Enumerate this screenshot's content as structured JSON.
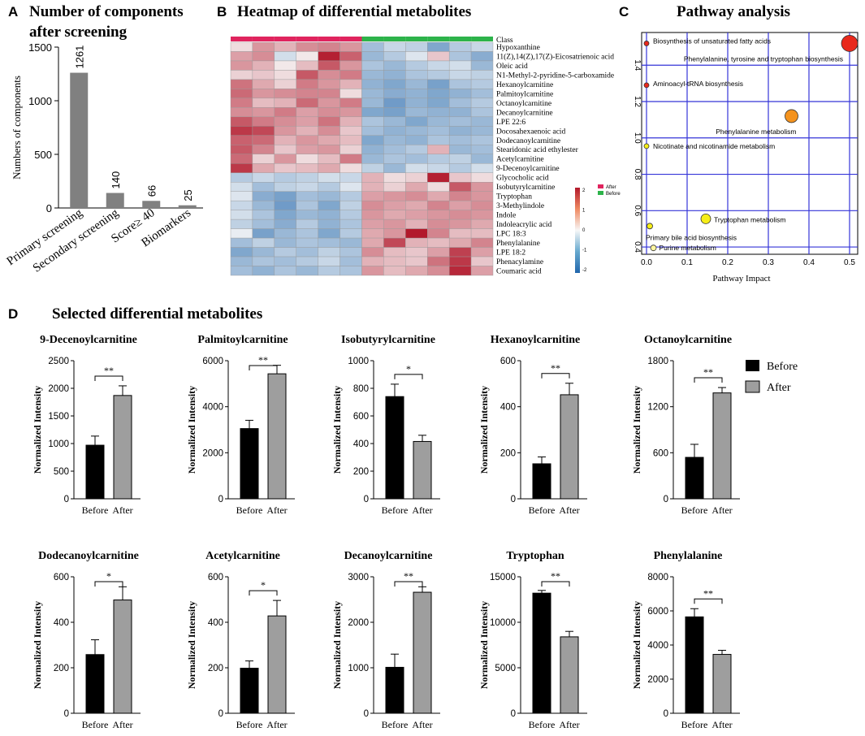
{
  "panels": {
    "a": {
      "letter": "A",
      "title_line1": "Number of components",
      "title_line2": "after screening"
    },
    "b": {
      "letter": "B",
      "title": "Heatmap of differential metabolites"
    },
    "c": {
      "letter": "C",
      "title": "Pathway analysis"
    },
    "d": {
      "letter": "D",
      "title": "Selected differential metabolites"
    }
  },
  "colors": {
    "bar_gray": "#808080",
    "before_black": "#000000",
    "after_gray": "#9e9e9e",
    "class_after": "#e0245e",
    "class_before": "#2db34a",
    "pathway_grid": "#3535d8",
    "bubble_red": "#e8291c",
    "bubble_orange": "#f4931e",
    "bubble_yellow": "#f6ee18"
  },
  "chart_data": [
    {
      "id": "screening",
      "type": "bar",
      "title": "Number of components after screening",
      "ylabel": "Numbers of components",
      "xlabel": "",
      "categories": [
        "Primary screening",
        "Secondary screening",
        "Score≥ 40",
        "Biomarkers"
      ],
      "values": [
        1261,
        140,
        66,
        25
      ],
      "value_labels": [
        "1261",
        "140",
        "66",
        "25"
      ],
      "ylim": [
        0,
        1500
      ],
      "yticks": [
        0,
        500,
        1000,
        1500
      ],
      "ytick_labels": [
        "0",
        "500",
        "1000",
        "1500"
      ]
    },
    {
      "id": "heatmap",
      "type": "heatmap",
      "title": "Heatmap of differential metabolites",
      "class_label": "Class",
      "class_groups": [
        "After",
        "After",
        "After",
        "After",
        "After",
        "After",
        "Before",
        "Before",
        "Before",
        "Before",
        "Before",
        "Before"
      ],
      "legend_groups": [
        "After",
        "Before"
      ],
      "colorbar_ticks": [
        "2",
        "1",
        "0",
        "-1",
        "-2"
      ],
      "rows": [
        "Hypoxanthine",
        "11(Z),14(Z),17(Z)-Eicosatrienoic acid",
        "Oleic acid",
        "N1-Methyl-2-pyridine-5-carboxamide",
        "Hexanoylcarnitine",
        "Palmitoylcarnitine",
        "Octanoylcarnitine",
        "Decanoylcarnitine",
        "LPE 22:6",
        "Docosahexaenoic acid",
        "Dodecanoylcarnitine",
        "Stearidonic acid ethylester",
        "Acetylcarnitine",
        "9-Decenoylcarnitine",
        "Glycocholic acid",
        "Isobutyrylcarnitine",
        "Tryptophan",
        "3-Methylindole",
        "Indole",
        "Indoleacrylic acid",
        "LPC 18:3",
        "Phenylalanine",
        "LPE 18:2",
        "Phenacylamine",
        "Coumaric acid"
      ],
      "values": [
        [
          0.2,
          0.9,
          0.6,
          1.0,
          1.1,
          0.9,
          -0.8,
          -0.4,
          -0.5,
          -1.2,
          -0.6,
          -0.4
        ],
        [
          0.8,
          1.0,
          -0.3,
          0.1,
          2.3,
          1.5,
          -0.9,
          -0.6,
          -0.2,
          0.4,
          -0.7,
          -1.1
        ],
        [
          0.9,
          0.6,
          0.1,
          0.5,
          1.6,
          0.9,
          -0.7,
          -0.9,
          -0.6,
          -0.4,
          -0.3,
          -0.9
        ],
        [
          0.3,
          0.4,
          0.2,
          1.6,
          1.0,
          1.2,
          -0.9,
          -1.0,
          -0.7,
          -0.6,
          -0.4,
          -0.5
        ],
        [
          1.3,
          0.7,
          0.3,
          1.2,
          0.9,
          0.6,
          -1.0,
          -1.2,
          -0.9,
          -1.3,
          -0.7,
          -0.6
        ],
        [
          1.4,
          0.9,
          1.0,
          1.1,
          1.1,
          0.2,
          -0.9,
          -1.1,
          -1.0,
          -1.2,
          -1.0,
          -0.8
        ],
        [
          1.2,
          0.5,
          0.6,
          1.4,
          0.9,
          1.2,
          -0.9,
          -1.4,
          -1.0,
          -1.2,
          -0.8,
          -0.6
        ],
        [
          1.0,
          0.9,
          1.2,
          0.8,
          1.0,
          0.9,
          -1.2,
          -1.3,
          -0.9,
          -1.0,
          -1.0,
          -0.7
        ],
        [
          1.6,
          1.2,
          1.0,
          0.8,
          1.3,
          0.6,
          -0.7,
          -0.9,
          -1.2,
          -0.9,
          -0.8,
          -0.9
        ],
        [
          2.0,
          1.8,
          0.9,
          0.6,
          1.0,
          0.4,
          -0.8,
          -1.0,
          -0.9,
          -0.8,
          -1.0,
          -0.9
        ],
        [
          1.5,
          1.4,
          0.6,
          0.9,
          0.7,
          0.5,
          -1.2,
          -0.9,
          -1.0,
          -0.7,
          -0.8,
          -0.7
        ],
        [
          1.6,
          1.1,
          0.4,
          0.8,
          0.9,
          0.3,
          -1.0,
          -0.8,
          -0.6,
          0.6,
          -0.9,
          -0.8
        ],
        [
          1.4,
          0.3,
          0.9,
          0.2,
          0.5,
          1.2,
          -0.9,
          -0.7,
          -0.8,
          -0.6,
          -0.5,
          -0.9
        ],
        [
          2.0,
          0.7,
          0.4,
          0.5,
          0.7,
          0.2,
          -0.5,
          -0.9,
          -0.3,
          -0.4,
          -0.6,
          -0.3
        ],
        [
          -0.6,
          -0.4,
          -0.6,
          -0.5,
          -0.3,
          -0.4,
          0.6,
          0.2,
          0.3,
          2.3,
          0.4,
          0.2
        ],
        [
          -0.3,
          -0.8,
          -0.5,
          -0.4,
          -0.6,
          -0.2,
          0.6,
          0.3,
          0.7,
          0.2,
          1.6,
          0.9
        ],
        [
          -0.2,
          -1.1,
          -1.3,
          -0.8,
          -0.9,
          -0.6,
          0.8,
          0.9,
          1.0,
          0.7,
          1.1,
          0.9
        ],
        [
          -0.4,
          -0.9,
          -1.4,
          -0.7,
          -1.2,
          -0.5,
          1.0,
          0.8,
          0.7,
          1.1,
          0.8,
          1.0
        ],
        [
          -0.3,
          -0.7,
          -1.2,
          -0.9,
          -1.0,
          -0.6,
          0.9,
          0.7,
          0.8,
          0.9,
          1.0,
          0.9
        ],
        [
          -0.5,
          -0.8,
          -1.1,
          -0.6,
          -1.0,
          -0.7,
          0.8,
          0.9,
          0.6,
          1.0,
          0.9,
          0.7
        ],
        [
          -0.1,
          -1.3,
          -0.9,
          -0.7,
          -1.2,
          -0.6,
          0.7,
          0.9,
          2.4,
          1.1,
          0.5,
          0.5
        ],
        [
          -0.8,
          -0.5,
          -0.9,
          -0.7,
          -0.8,
          -0.9,
          0.7,
          1.8,
          0.6,
          0.5,
          0.7,
          1.1
        ],
        [
          -1.2,
          -0.9,
          -0.6,
          -0.8,
          -0.5,
          -0.7,
          1.0,
          0.5,
          0.4,
          0.8,
          1.9,
          0.8
        ],
        [
          -0.9,
          -0.7,
          -0.8,
          -0.6,
          -0.4,
          -0.8,
          0.6,
          0.5,
          0.4,
          1.3,
          2.0,
          0.4
        ],
        [
          -0.8,
          -1.0,
          -0.7,
          -0.9,
          -0.6,
          -0.7,
          0.9,
          0.5,
          0.7,
          1.0,
          2.2,
          0.8
        ]
      ]
    },
    {
      "id": "pathway",
      "type": "scatter",
      "title": "Pathway analysis",
      "xlabel": "Pathway Impact",
      "ylabel": "",
      "xlim": [
        -0.012,
        0.52
      ],
      "ylim": [
        0.36,
        1.58
      ],
      "xticks": [
        0.0,
        0.1,
        0.2,
        0.3,
        0.4,
        0.5
      ],
      "xtick_labels": [
        "0.0",
        "0.1",
        "0.2",
        "0.3",
        "0.4",
        "0.5"
      ],
      "yticks": [
        0.4,
        0.6,
        0.8,
        1.0,
        1.2,
        1.4
      ],
      "ytick_labels": [
        "0.4",
        "0.6",
        "0.8",
        "1.0",
        "1.2",
        "1.4"
      ],
      "points": [
        {
          "name": "Biosynthesis of unsaturated fatty acids",
          "x": 0.0,
          "y": 1.52,
          "size": 3,
          "color": "#e8291c"
        },
        {
          "name": "Phenylalanine, tyrosine and tryptophan biosynthesis",
          "x": 0.5,
          "y": 1.52,
          "size": 10,
          "color": "#e8291c"
        },
        {
          "name": "Aminoacyl-tRNA biosynthesis",
          "x": 0.0,
          "y": 1.29,
          "size": 3,
          "color": "#e8291c"
        },
        {
          "name": "Phenylalanine metabolism",
          "x": 0.357,
          "y": 1.12,
          "size": 8,
          "color": "#f4931e"
        },
        {
          "name": "Nicotinate and nicotinamide metabolism",
          "x": 0.0,
          "y": 0.955,
          "size": 3,
          "color": "#f6ee18"
        },
        {
          "name": "Tryptophan metabolism",
          "x": 0.146,
          "y": 0.555,
          "size": 6,
          "color": "#f6ee18"
        },
        {
          "name": "Primary bile acid biosynthesis",
          "x": 0.008,
          "y": 0.515,
          "size": 3.5,
          "color": "#f6ee18"
        },
        {
          "name": "Purine metabolism",
          "x": 0.017,
          "y": 0.395,
          "size": 3.5,
          "color": "#fff6a0"
        }
      ]
    },
    {
      "id": "decenoyl",
      "type": "bar",
      "title": "9-Decenoylcarnitine",
      "ylabel": "Normalized Intensity",
      "categories": [
        "Before",
        "After"
      ],
      "values": [
        970,
        1870
      ],
      "errors": [
        165,
        175
      ],
      "ylim": [
        0,
        2500
      ],
      "yticks": [
        0,
        500,
        1000,
        1500,
        2000,
        2500
      ],
      "ytick_labels": [
        "0",
        "500",
        "1000",
        "1500",
        "2000",
        "2500"
      ],
      "significance": "**"
    },
    {
      "id": "palmitoyl",
      "type": "bar",
      "title": "Palmitoylcarnitine",
      "ylabel": "Normalized Intensity",
      "categories": [
        "Before",
        "After"
      ],
      "values": [
        3050,
        5430
      ],
      "errors": [
        360,
        370
      ],
      "ylim": [
        0,
        6000
      ],
      "yticks": [
        0,
        2000,
        4000,
        6000
      ],
      "ytick_labels": [
        "0",
        "2000",
        "4000",
        "6000"
      ],
      "significance": "**"
    },
    {
      "id": "isobutyryl",
      "type": "bar",
      "title": "Isobutyrylcarnitine",
      "ylabel": "Normalized Intensity",
      "categories": [
        "Before",
        "After"
      ],
      "values": [
        740,
        415
      ],
      "errors": [
        90,
        45
      ],
      "ylim": [
        0,
        1000
      ],
      "yticks": [
        0,
        200,
        400,
        600,
        800,
        1000
      ],
      "ytick_labels": [
        "0",
        "200",
        "400",
        "600",
        "800",
        "1000"
      ],
      "significance": "*"
    },
    {
      "id": "hexanoyl",
      "type": "bar",
      "title": "Hexanoylcarnitine",
      "ylabel": "Normalized Intensity",
      "categories": [
        "Before",
        "After"
      ],
      "values": [
        152,
        452
      ],
      "errors": [
        30,
        50
      ],
      "ylim": [
        0,
        600
      ],
      "yticks": [
        0,
        200,
        400,
        600
      ],
      "ytick_labels": [
        "0",
        "200",
        "400",
        "600"
      ],
      "significance": "**"
    },
    {
      "id": "octanoyl",
      "type": "bar",
      "title": "Octanoylcarnitine",
      "ylabel": "Normalized Intensity",
      "categories": [
        "Before",
        "After"
      ],
      "values": [
        540,
        1380
      ],
      "errors": [
        170,
        70
      ],
      "ylim": [
        0,
        1800
      ],
      "yticks": [
        0,
        600,
        1200,
        1800
      ],
      "ytick_labels": [
        "0",
        "600",
        "1200",
        "1800"
      ],
      "significance": "**"
    },
    {
      "id": "dodecanoyl",
      "type": "bar",
      "title": "Dodecanoylcarnitine",
      "ylabel": "Normalized Intensity",
      "categories": [
        "Before",
        "After"
      ],
      "values": [
        258,
        498
      ],
      "errors": [
        65,
        58
      ],
      "ylim": [
        0,
        600
      ],
      "yticks": [
        0,
        200,
        400,
        600
      ],
      "ytick_labels": [
        "0",
        "200",
        "400",
        "600"
      ],
      "significance": "*"
    },
    {
      "id": "acetyl",
      "type": "bar",
      "title": "Acetylcarnitine",
      "ylabel": "Normalized Intensity",
      "categories": [
        "Before",
        "After"
      ],
      "values": [
        198,
        428
      ],
      "errors": [
        32,
        68
      ],
      "ylim": [
        0,
        600
      ],
      "yticks": [
        0,
        200,
        400,
        600
      ],
      "ytick_labels": [
        "0",
        "200",
        "400",
        "600"
      ],
      "significance": "*"
    },
    {
      "id": "decanoyl",
      "type": "bar",
      "title": "Decanoylcarnitine",
      "ylabel": "Normalized Intensity",
      "categories": [
        "Before",
        "After"
      ],
      "values": [
        1010,
        2660
      ],
      "errors": [
        290,
        120
      ],
      "ylim": [
        0,
        3000
      ],
      "yticks": [
        0,
        1000,
        2000,
        3000
      ],
      "ytick_labels": [
        "0",
        "1000",
        "2000",
        "3000"
      ],
      "significance": "**"
    },
    {
      "id": "tryptophan",
      "type": "bar",
      "title": "Tryptophan",
      "ylabel": "Normalized Intensity",
      "categories": [
        "Before",
        "After"
      ],
      "values": [
        13200,
        8400
      ],
      "errors": [
        300,
        600
      ],
      "ylim": [
        0,
        15000
      ],
      "yticks": [
        0,
        5000,
        10000,
        15000
      ],
      "ytick_labels": [
        "0",
        "5000",
        "10000",
        "15000"
      ],
      "significance": "**"
    },
    {
      "id": "phenylalanine",
      "type": "bar",
      "title": "Phenylalanine",
      "ylabel": "Normalized Intensity",
      "categories": [
        "Before",
        "After"
      ],
      "values": [
        5650,
        3450
      ],
      "errors": [
        480,
        240
      ],
      "ylim": [
        0,
        8000
      ],
      "yticks": [
        0,
        2000,
        4000,
        6000,
        8000
      ],
      "ytick_labels": [
        "0",
        "2000",
        "4000",
        "6000",
        "8000"
      ],
      "significance": "**"
    }
  ],
  "legend_d": {
    "before": "Before",
    "after": "After"
  }
}
